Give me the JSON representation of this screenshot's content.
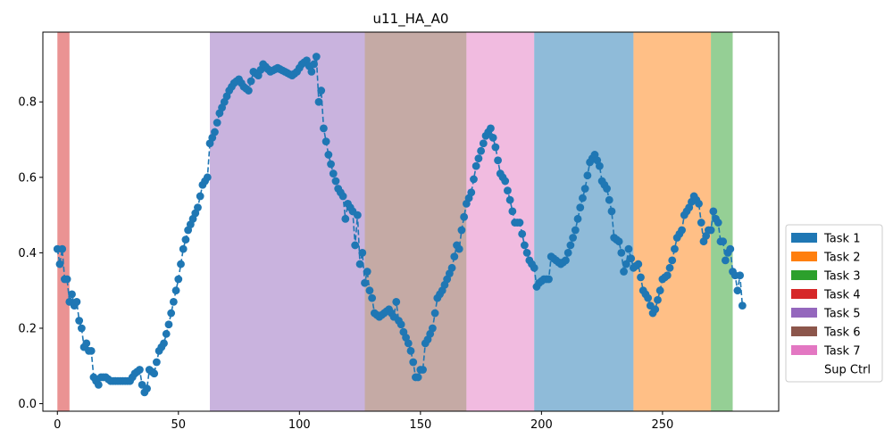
{
  "chart_data": {
    "type": "line",
    "title": "u11_HA_A0",
    "xlabel": "",
    "ylabel": "",
    "xlim": [
      -6,
      298
    ],
    "ylim": [
      -0.02,
      0.985
    ],
    "xticks": [
      0,
      50,
      100,
      150,
      200,
      250
    ],
    "yticks": [
      0.0,
      0.2,
      0.4,
      0.6,
      0.8
    ],
    "ytick_labels": [
      "0.0",
      "0.2",
      "0.4",
      "0.6",
      "0.8"
    ],
    "line_style": "dashed",
    "marker": "circle",
    "series_color": "#1f77b4",
    "legend_position": "right-bottom",
    "legend": [
      {
        "label": "Task 1",
        "color": "#1f77b4"
      },
      {
        "label": "Task 2",
        "color": "#ff7f0e"
      },
      {
        "label": "Task 3",
        "color": "#2ca02c"
      },
      {
        "label": "Task 4",
        "color": "#d62728"
      },
      {
        "label": "Task 5",
        "color": "#9467bd"
      },
      {
        "label": "Task 6",
        "color": "#8c564b"
      },
      {
        "label": "Task 7",
        "color": "#e377c2"
      },
      {
        "label": "Sup Ctrl",
        "color": "#ffffff"
      }
    ],
    "task_regions": [
      {
        "task": "Task 4",
        "x_start": 0,
        "x_end": 5,
        "color": "#d62728"
      },
      {
        "task": "Task 5",
        "x_start": 63,
        "x_end": 127,
        "color": "#9467bd"
      },
      {
        "task": "Task 6",
        "x_start": 127,
        "x_end": 169,
        "color": "#8c564b"
      },
      {
        "task": "Task 7",
        "x_start": 169,
        "x_end": 197,
        "color": "#e377c2"
      },
      {
        "task": "Task 1",
        "x_start": 197,
        "x_end": 238,
        "color": "#1f77b4"
      },
      {
        "task": "Task 2",
        "x_start": 238,
        "x_end": 270,
        "color": "#ff7f0e"
      },
      {
        "task": "Task 3",
        "x_start": 270,
        "x_end": 279,
        "color": "#2ca02c"
      }
    ],
    "keypoints": [
      [
        0,
        0.41
      ],
      [
        1,
        0.37
      ],
      [
        2,
        0.41
      ],
      [
        3,
        0.33
      ],
      [
        4,
        0.33
      ],
      [
        5,
        0.27
      ],
      [
        6,
        0.29
      ],
      [
        7,
        0.26
      ],
      [
        8,
        0.27
      ],
      [
        9,
        0.22
      ],
      [
        10,
        0.2
      ],
      [
        11,
        0.15
      ],
      [
        12,
        0.16
      ],
      [
        13,
        0.14
      ],
      [
        14,
        0.14
      ],
      [
        15,
        0.07
      ],
      [
        16,
        0.06
      ],
      [
        17,
        0.05
      ],
      [
        18,
        0.07
      ],
      [
        20,
        0.07
      ],
      [
        22,
        0.06
      ],
      [
        25,
        0.06
      ],
      [
        28,
        0.06
      ],
      [
        30,
        0.06
      ],
      [
        32,
        0.08
      ],
      [
        34,
        0.09
      ],
      [
        35,
        0.05
      ],
      [
        36,
        0.03
      ],
      [
        37,
        0.04
      ],
      [
        38,
        0.09
      ],
      [
        40,
        0.08
      ],
      [
        42,
        0.14
      ],
      [
        44,
        0.16
      ],
      [
        46,
        0.21
      ],
      [
        48,
        0.27
      ],
      [
        50,
        0.33
      ],
      [
        52,
        0.41
      ],
      [
        54,
        0.46
      ],
      [
        56,
        0.49
      ],
      [
        58,
        0.52
      ],
      [
        60,
        0.58
      ],
      [
        62,
        0.6
      ],
      [
        63,
        0.69
      ],
      [
        65,
        0.72
      ],
      [
        67,
        0.77
      ],
      [
        69,
        0.8
      ],
      [
        71,
        0.83
      ],
      [
        73,
        0.85
      ],
      [
        75,
        0.86
      ],
      [
        77,
        0.84
      ],
      [
        79,
        0.83
      ],
      [
        81,
        0.88
      ],
      [
        83,
        0.87
      ],
      [
        85,
        0.9
      ],
      [
        88,
        0.88
      ],
      [
        91,
        0.89
      ],
      [
        94,
        0.88
      ],
      [
        97,
        0.87
      ],
      [
        99,
        0.88
      ],
      [
        101,
        0.9
      ],
      [
        103,
        0.91
      ],
      [
        105,
        0.88
      ],
      [
        107,
        0.92
      ],
      [
        108,
        0.8
      ],
      [
        109,
        0.83
      ],
      [
        110,
        0.73
      ],
      [
        112,
        0.66
      ],
      [
        114,
        0.61
      ],
      [
        116,
        0.57
      ],
      [
        118,
        0.55
      ],
      [
        119,
        0.49
      ],
      [
        120,
        0.53
      ],
      [
        122,
        0.51
      ],
      [
        123,
        0.42
      ],
      [
        124,
        0.5
      ],
      [
        125,
        0.37
      ],
      [
        126,
        0.4
      ],
      [
        127,
        0.32
      ],
      [
        128,
        0.35
      ],
      [
        129,
        0.3
      ],
      [
        130,
        0.28
      ],
      [
        131,
        0.24
      ],
      [
        133,
        0.23
      ],
      [
        135,
        0.24
      ],
      [
        137,
        0.25
      ],
      [
        139,
        0.23
      ],
      [
        140,
        0.27
      ],
      [
        141,
        0.22
      ],
      [
        142,
        0.21
      ],
      [
        143,
        0.19
      ],
      [
        145,
        0.16
      ],
      [
        146,
        0.14
      ],
      [
        147,
        0.11
      ],
      [
        148,
        0.07
      ],
      [
        149,
        0.07
      ],
      [
        150,
        0.09
      ],
      [
        151,
        0.09
      ],
      [
        152,
        0.16
      ],
      [
        153,
        0.17
      ],
      [
        155,
        0.2
      ],
      [
        157,
        0.28
      ],
      [
        159,
        0.3
      ],
      [
        161,
        0.33
      ],
      [
        163,
        0.36
      ],
      [
        165,
        0.42
      ],
      [
        166,
        0.41
      ],
      [
        167,
        0.46
      ],
      [
        169,
        0.53
      ],
      [
        171,
        0.56
      ],
      [
        173,
        0.63
      ],
      [
        175,
        0.67
      ],
      [
        177,
        0.71
      ],
      [
        179,
        0.73
      ],
      [
        181,
        0.68
      ],
      [
        183,
        0.61
      ],
      [
        185,
        0.59
      ],
      [
        187,
        0.54
      ],
      [
        189,
        0.48
      ],
      [
        191,
        0.48
      ],
      [
        193,
        0.42
      ],
      [
        195,
        0.38
      ],
      [
        197,
        0.36
      ],
      [
        198,
        0.31
      ],
      [
        199,
        0.32
      ],
      [
        201,
        0.33
      ],
      [
        203,
        0.33
      ],
      [
        204,
        0.39
      ],
      [
        206,
        0.38
      ],
      [
        208,
        0.37
      ],
      [
        210,
        0.38
      ],
      [
        212,
        0.42
      ],
      [
        214,
        0.46
      ],
      [
        216,
        0.52
      ],
      [
        218,
        0.57
      ],
      [
        220,
        0.64
      ],
      [
        222,
        0.66
      ],
      [
        224,
        0.63
      ],
      [
        225,
        0.59
      ],
      [
        227,
        0.57
      ],
      [
        229,
        0.51
      ],
      [
        230,
        0.44
      ],
      [
        232,
        0.43
      ],
      [
        233,
        0.4
      ],
      [
        234,
        0.35
      ],
      [
        235,
        0.37
      ],
      [
        236,
        0.41
      ],
      [
        238,
        0.36
      ],
      [
        240,
        0.37
      ],
      [
        242,
        0.3
      ],
      [
        244,
        0.28
      ],
      [
        246,
        0.24
      ],
      [
        247,
        0.25
      ],
      [
        249,
        0.3
      ],
      [
        250,
        0.33
      ],
      [
        252,
        0.34
      ],
      [
        254,
        0.38
      ],
      [
        256,
        0.44
      ],
      [
        258,
        0.46
      ],
      [
        259,
        0.5
      ],
      [
        261,
        0.52
      ],
      [
        263,
        0.55
      ],
      [
        265,
        0.53
      ],
      [
        266,
        0.48
      ],
      [
        267,
        0.43
      ],
      [
        269,
        0.46
      ],
      [
        270,
        0.46
      ],
      [
        271,
        0.51
      ],
      [
        272,
        0.49
      ],
      [
        273,
        0.48
      ],
      [
        274,
        0.43
      ],
      [
        275,
        0.43
      ],
      [
        276,
        0.38
      ],
      [
        277,
        0.4
      ],
      [
        278,
        0.41
      ],
      [
        279,
        0.35
      ],
      [
        280,
        0.34
      ],
      [
        281,
        0.3
      ],
      [
        282,
        0.34
      ],
      [
        283,
        0.26
      ]
    ]
  }
}
